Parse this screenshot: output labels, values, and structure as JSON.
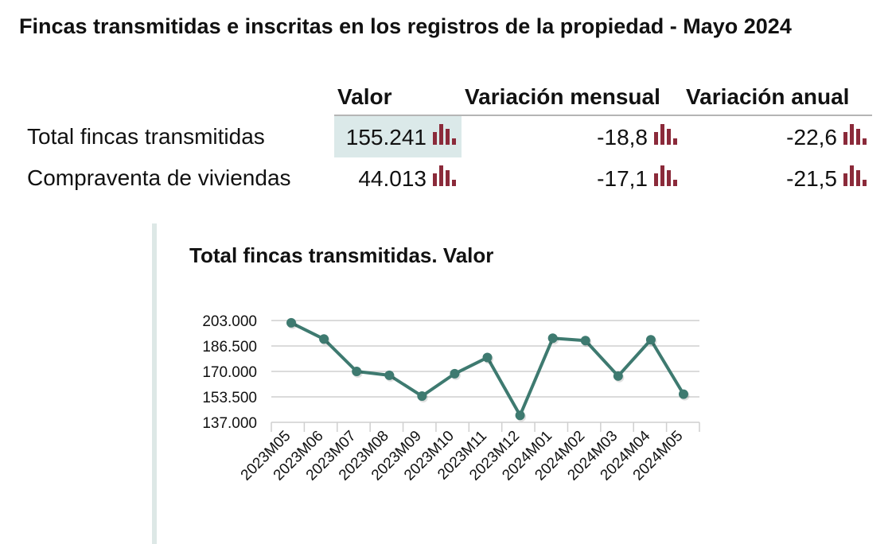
{
  "title": "Fincas transmitidas e inscritas en los registros de la propiedad - Mayo 2024",
  "table": {
    "headers": [
      "Valor",
      "Variación mensual",
      "Variación anual"
    ],
    "rows": [
      {
        "label": "Total fincas transmitidas",
        "valor": "155.241",
        "mensual": "-18,8",
        "anual": "-22,6",
        "highlighted": true
      },
      {
        "label": "Compraventa de viviendas",
        "valor": "44.013",
        "mensual": "-17,1",
        "anual": "-21,5",
        "highlighted": false
      }
    ],
    "icon": "bar-chart-icon",
    "icon_color": "#8b2a3a",
    "highlight_color": "#dbe9e9"
  },
  "chart_title": "Total fincas transmitidas. Valor",
  "chart_data": {
    "type": "line",
    "title": "Total fincas transmitidas. Valor",
    "categories": [
      "2023M05",
      "2023M06",
      "2023M07",
      "2023M08",
      "2023M09",
      "2023M10",
      "2023M11",
      "2023M12",
      "2024M01",
      "2024M02",
      "2024M03",
      "2024M04",
      "2024M05"
    ],
    "series": [
      {
        "values": [
          201500,
          191000,
          170000,
          167500,
          154000,
          168500,
          179000,
          141500,
          191500,
          190000,
          167000,
          190500,
          155241
        ]
      }
    ],
    "yticks": [
      "203.000",
      "186.500",
      "170.000",
      "153.500",
      "137.000"
    ],
    "ytick_values": [
      203000,
      186500,
      170000,
      153500,
      137000
    ],
    "ylim": [
      137000,
      203000
    ],
    "line_color": "#3e7a70",
    "grid": true
  }
}
